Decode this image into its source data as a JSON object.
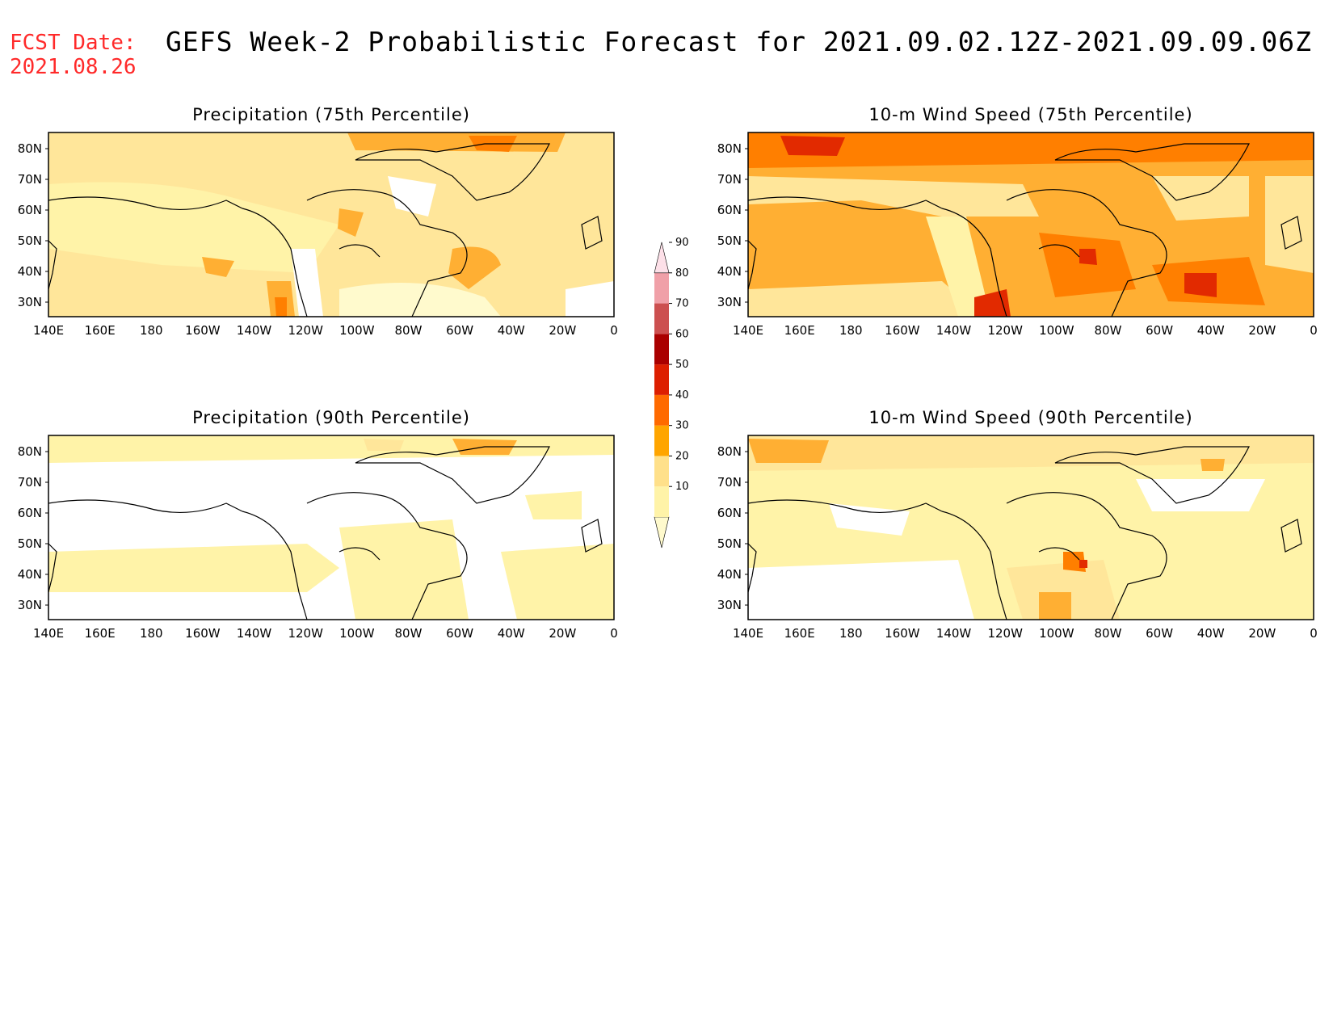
{
  "header": {
    "fcst_label": "FCST Date:",
    "fcst_date": "2021.08.26",
    "title": "GEFS Week-2 Probabilistic Forecast for 2021.09.02.12Z-2021.09.09.06Z"
  },
  "axes": {
    "lon_labels": [
      "140E",
      "160E",
      "180",
      "160W",
      "140W",
      "120W",
      "100W",
      "80W",
      "60W",
      "40W",
      "20W",
      "0"
    ],
    "lat_labels": [
      "80N",
      "70N",
      "60N",
      "50N",
      "40N",
      "30N"
    ]
  },
  "panels": [
    {
      "id": "precip-75",
      "title": "Precipitation (75th Percentile)"
    },
    {
      "id": "wind-75",
      "title": "10-m Wind Speed (75th Percentile)"
    },
    {
      "id": "precip-90",
      "title": "Precipitation (90th Percentile)"
    },
    {
      "id": "wind-90",
      "title": "10-m Wind Speed (90th Percentile)"
    }
  ],
  "colorbar": {
    "levels": [
      "10",
      "20",
      "30",
      "40",
      "50",
      "60",
      "70",
      "80",
      "90"
    ],
    "colors": [
      "#fffacd",
      "#fff3a8",
      "#ffe08a",
      "#ffa500",
      "#ff6a00",
      "#dd1f00",
      "#aa0000",
      "#cc5050",
      "#f0a0a8",
      "#fde0e8"
    ]
  },
  "palette": {
    "c10": "#fffacd",
    "c20": "#ffe69a",
    "c30": "#ffaf33",
    "c40": "#ff7f00",
    "c50": "#e22a00",
    "c60": "#aa0000"
  }
}
